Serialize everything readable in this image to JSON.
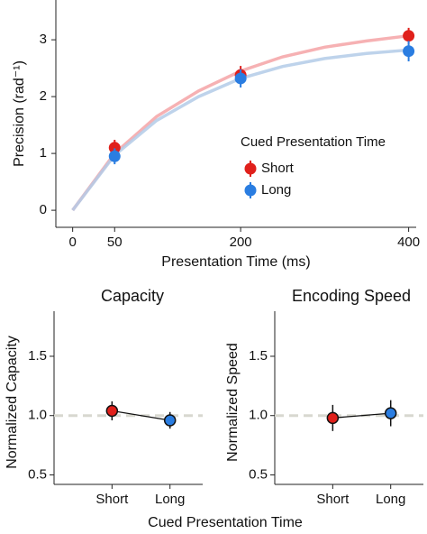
{
  "chart_data": [
    {
      "type": "scatter",
      "xlabel": "Presentation Time (ms)",
      "ylabel": "Precision (rad⁻¹)",
      "xlim": [
        -20,
        409
      ],
      "xticks": [
        0,
        50,
        200,
        400
      ],
      "ylim": [
        -0.3,
        3.7
      ],
      "yticks": [
        0,
        1,
        2,
        3
      ],
      "legend_title": "Cued Presentation Time",
      "legend": "center right",
      "x": [
        50,
        200,
        400
      ],
      "series": [
        {
          "name": "Short",
          "color": "#e0201b",
          "curve_color": "#f4a3a6",
          "values": [
            1.1,
            2.38,
            3.07
          ],
          "error": [
            0.14,
            0.16,
            0.14
          ],
          "curve": {
            "x": [
              0,
              50,
              100,
              150,
              200,
              250,
              300,
              350,
              400
            ],
            "values": [
              0,
              1.0,
              1.65,
              2.1,
              2.45,
              2.7,
              2.87,
              2.98,
              3.07
            ]
          }
        },
        {
          "name": "Long",
          "color": "#2a7de1",
          "curve_color": "#b3cbe8",
          "values": [
            0.95,
            2.32,
            2.8
          ],
          "error": [
            0.14,
            0.16,
            0.18
          ],
          "curve": {
            "x": [
              0,
              50,
              100,
              150,
              200,
              250,
              300,
              350,
              400
            ],
            "values": [
              0,
              0.97,
              1.58,
              2.0,
              2.32,
              2.53,
              2.67,
              2.76,
              2.82
            ]
          }
        }
      ]
    },
    {
      "type": "dot",
      "title": "Capacity",
      "ylabel": "Normalized Capacity",
      "xlabel": "Cued Presentation Time",
      "categories": [
        "Short",
        "Long"
      ],
      "values": [
        1.04,
        0.96
      ],
      "error": [
        0.08,
        0.07
      ],
      "colors": [
        "#e0201b",
        "#2a7de1"
      ],
      "ylim": [
        0.42,
        1.88
      ],
      "yticks": [
        0.5,
        {
          "value": 1,
          "label": "1.0"
        },
        1.5
      ],
      "reference": 1
    },
    {
      "type": "dot",
      "title": "Encoding Speed",
      "ylabel": "Normalized Speed",
      "categories": [
        "Short",
        "Long"
      ],
      "values": [
        0.98,
        1.02
      ],
      "error": [
        0.11,
        0.11
      ],
      "colors": [
        "#e0201b",
        "#2a7de1"
      ],
      "ylim": [
        0.42,
        1.88
      ],
      "yticks": [
        0.5,
        {
          "value": 1,
          "label": "1.0"
        },
        1.5
      ],
      "reference": 1
    }
  ]
}
